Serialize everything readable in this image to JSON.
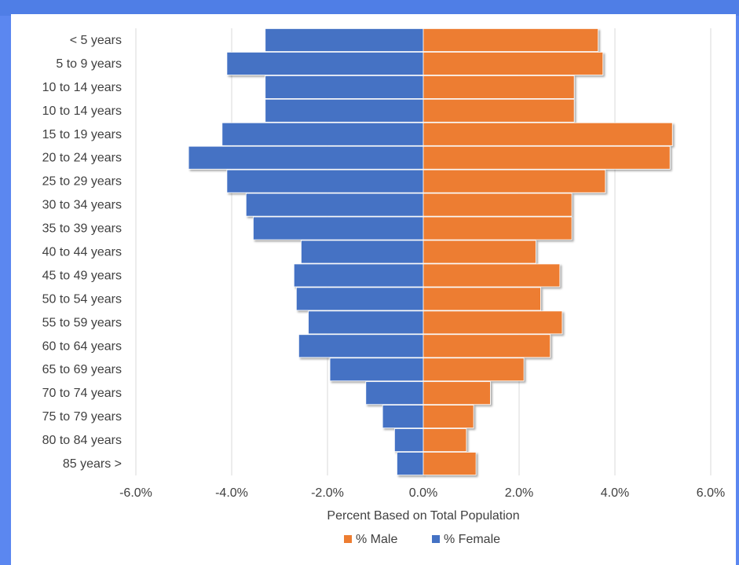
{
  "chart_data": {
    "type": "bar",
    "orientation": "horizontal",
    "categories": [
      "< 5 years",
      "5 to 9 years",
      "10 to 14 years",
      "10 to 14 years",
      "15 to 19 years",
      "20 to 24 years",
      "25 to 29 years",
      "30 to 34 years",
      "35 to 39 years",
      "40 to 44 years",
      "45 to 49 years",
      "50 to 54 years",
      "55 to 59 years",
      "60 to 64 years",
      "65 to 69 years",
      "70 to 74 years",
      "75 to 79 years",
      "80 to 84 years",
      "85 years >"
    ],
    "series": [
      {
        "name": "% Female",
        "color": "#4472c4",
        "values": [
          -3.3,
          -4.1,
          -3.3,
          -3.3,
          -4.2,
          -4.9,
          -4.1,
          -3.7,
          -3.55,
          -2.55,
          -2.7,
          -2.65,
          -2.4,
          -2.6,
          -1.95,
          -1.2,
          -0.85,
          -0.6,
          -0.55
        ]
      },
      {
        "name": "% Male",
        "color": "#ed7d31",
        "values": [
          3.65,
          3.75,
          3.15,
          3.15,
          5.2,
          5.15,
          3.8,
          3.1,
          3.1,
          2.35,
          2.85,
          2.45,
          2.9,
          2.65,
          2.1,
          1.4,
          1.05,
          0.9,
          1.1
        ]
      }
    ],
    "xlim": [
      -6,
      6
    ],
    "xticks": [
      "-6.0%",
      "-4.0%",
      "-2.0%",
      "0.0%",
      "2.0%",
      "4.0%",
      "6.0%"
    ],
    "xlabel": "Percent Based on Total Population",
    "legend": {
      "position": "bottom",
      "items": [
        "% Male",
        "% Female"
      ]
    },
    "grid": "vertical"
  }
}
